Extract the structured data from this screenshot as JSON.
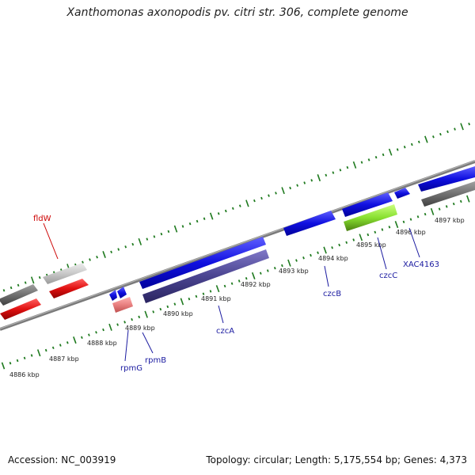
{
  "header": {
    "title": "Xanthomonas axonopodis pv. citri str. 306, complete genome"
  },
  "footer": {
    "accession": "Accession: NC_003919",
    "summary": "Topology: circular; Length: 5,175,554 bp; Genes: 4,373"
  },
  "colors": {
    "backbone": "#8a8a8a",
    "ticks": "#1f7a1f",
    "gene_blue": "#1010e0",
    "gene_dark_blue": "#4a4490",
    "gene_red": "#e01010",
    "gene_pink": "#e88080",
    "gene_gray": "#707070",
    "gene_light_gray": "#c8c8c8",
    "gene_green": "#88e030",
    "label_red": "#cc0000",
    "label_blue": "#1a1aa0"
  },
  "scale": {
    "unit": "kbp",
    "labels": [
      "4886 kbp",
      "4887 kbp",
      "4888 kbp",
      "4889 kbp",
      "4890 kbp",
      "4891 kbp",
      "4892 kbp",
      "4893 kbp",
      "4894 kbp",
      "4895 kbp",
      "4896 kbp",
      "4897 kbp"
    ]
  },
  "gene_labels": [
    {
      "name": "fldW",
      "color": "red"
    },
    {
      "name": "rpmG",
      "color": "blue"
    },
    {
      "name": "rpmB",
      "color": "blue"
    },
    {
      "name": "czcA",
      "color": "blue"
    },
    {
      "name": "czcB",
      "color": "blue"
    },
    {
      "name": "czcC",
      "color": "blue"
    },
    {
      "name": "XAC4163",
      "color": "blue"
    }
  ]
}
